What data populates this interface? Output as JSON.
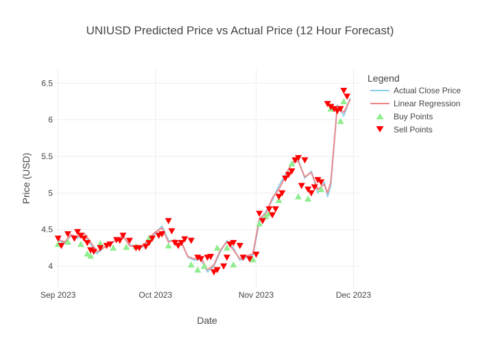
{
  "chart_data": {
    "type": "line",
    "title": "UNIUSD Predicted Price vs Actual Price (12 Hour Forecast)",
    "xlabel": "Date",
    "ylabel": "Price (USD)",
    "xlim": [
      "2023-08-31",
      "2023-12-03"
    ],
    "ylim": [
      3.7,
      6.7
    ],
    "x_ticks": [
      {
        "date": "2023-09-01",
        "label": "Sep 2023"
      },
      {
        "date": "2023-10-01",
        "label": "Oct 2023"
      },
      {
        "date": "2023-11-01",
        "label": "Nov 2023"
      },
      {
        "date": "2023-12-01",
        "label": "Dec 2023"
      }
    ],
    "y_ticks": [
      4,
      4.5,
      5,
      5.5,
      6,
      6.5
    ],
    "y_tick_labels": [
      "4",
      "4.5",
      "5",
      "5.5",
      "6",
      "6.5"
    ],
    "grid": true,
    "legend": {
      "title": "Legend",
      "placement": "top-right"
    },
    "series": [
      {
        "name": "Actual Close Price",
        "kind": "line",
        "color": "#87ceeb",
        "x": [
          "2023-09-01",
          "2023-09-03",
          "2023-09-05",
          "2023-09-07",
          "2023-09-09",
          "2023-09-11",
          "2023-09-13",
          "2023-09-15",
          "2023-09-17",
          "2023-09-19",
          "2023-09-21",
          "2023-09-23",
          "2023-09-25",
          "2023-09-27",
          "2023-09-29",
          "2023-10-01",
          "2023-10-03",
          "2023-10-05",
          "2023-10-07",
          "2023-10-09",
          "2023-10-11",
          "2023-10-13",
          "2023-10-15",
          "2023-10-17",
          "2023-10-19",
          "2023-10-21",
          "2023-10-23",
          "2023-10-25",
          "2023-10-27",
          "2023-10-29",
          "2023-10-31",
          "2023-11-02",
          "2023-11-04",
          "2023-11-06",
          "2023-11-08",
          "2023-11-10",
          "2023-11-12",
          "2023-11-14",
          "2023-11-16",
          "2023-11-18",
          "2023-11-20",
          "2023-11-22",
          "2023-11-23",
          "2023-11-24",
          "2023-11-26",
          "2023-11-28",
          "2023-11-30"
        ],
        "values": [
          4.35,
          4.32,
          4.42,
          4.38,
          4.45,
          4.3,
          4.17,
          4.25,
          4.32,
          4.35,
          4.4,
          4.3,
          4.25,
          4.26,
          4.35,
          4.45,
          4.55,
          4.35,
          4.35,
          4.33,
          4.12,
          4.08,
          4.1,
          3.92,
          4.0,
          4.2,
          4.35,
          4.25,
          4.08,
          4.12,
          4.15,
          4.6,
          4.75,
          4.9,
          5.1,
          5.25,
          5.4,
          5.45,
          5.2,
          5.3,
          5.0,
          5.15,
          4.95,
          5.1,
          6.2,
          6.05,
          6.3
        ]
      },
      {
        "name": "Linear Regression",
        "kind": "line",
        "color": "#f08080",
        "x": [
          "2023-09-01",
          "2023-09-03",
          "2023-09-05",
          "2023-09-07",
          "2023-09-09",
          "2023-09-11",
          "2023-09-13",
          "2023-09-15",
          "2023-09-17",
          "2023-09-19",
          "2023-09-21",
          "2023-09-23",
          "2023-09-25",
          "2023-09-27",
          "2023-09-29",
          "2023-10-01",
          "2023-10-03",
          "2023-10-05",
          "2023-10-07",
          "2023-10-09",
          "2023-10-11",
          "2023-10-13",
          "2023-10-15",
          "2023-10-17",
          "2023-10-19",
          "2023-10-21",
          "2023-10-23",
          "2023-10-25",
          "2023-10-27",
          "2023-10-29",
          "2023-10-31",
          "2023-11-02",
          "2023-11-04",
          "2023-11-06",
          "2023-11-08",
          "2023-11-10",
          "2023-11-12",
          "2023-11-14",
          "2023-11-16",
          "2023-11-18",
          "2023-11-20",
          "2023-11-22",
          "2023-11-23",
          "2023-11-24",
          "2023-11-26",
          "2023-11-28",
          "2023-11-30"
        ],
        "values": [
          4.37,
          4.33,
          4.43,
          4.4,
          4.45,
          4.33,
          4.2,
          4.25,
          4.3,
          4.36,
          4.42,
          4.28,
          4.26,
          4.27,
          4.38,
          4.47,
          4.52,
          4.33,
          4.36,
          4.32,
          4.13,
          4.1,
          4.12,
          3.95,
          4.02,
          4.22,
          4.33,
          4.22,
          4.1,
          4.14,
          4.17,
          4.65,
          4.72,
          4.93,
          5.05,
          5.22,
          5.42,
          5.43,
          5.22,
          5.28,
          5.05,
          5.12,
          5.0,
          5.15,
          6.18,
          6.1,
          6.28
        ]
      },
      {
        "name": "Buy Points",
        "kind": "markers",
        "marker": "triangle-up",
        "color": "#90ee90",
        "x": [
          "2023-09-01",
          "2023-09-04",
          "2023-09-08",
          "2023-09-10",
          "2023-09-11",
          "2023-09-14",
          "2023-09-18",
          "2023-09-22",
          "2023-09-25",
          "2023-09-29",
          "2023-10-05",
          "2023-10-12",
          "2023-10-14",
          "2023-10-16",
          "2023-10-20",
          "2023-10-23",
          "2023-10-25",
          "2023-10-31",
          "2023-11-02",
          "2023-11-04",
          "2023-11-05",
          "2023-11-08",
          "2023-11-12",
          "2023-11-14",
          "2023-11-17",
          "2023-11-21",
          "2023-11-24",
          "2023-11-27",
          "2023-11-28"
        ],
        "values": [
          4.3,
          4.33,
          4.3,
          4.17,
          4.14,
          4.31,
          4.25,
          4.26,
          4.27,
          4.38,
          4.28,
          4.02,
          3.95,
          4.0,
          4.25,
          4.25,
          4.02,
          4.09,
          4.58,
          4.68,
          4.72,
          4.9,
          5.4,
          4.95,
          4.92,
          5.05,
          6.15,
          5.98,
          6.25
        ]
      },
      {
        "name": "Sell Points",
        "kind": "markers",
        "marker": "triangle-down",
        "color": "#ff0000",
        "x": [
          "2023-09-01",
          "2023-09-02",
          "2023-09-04",
          "2023-09-06",
          "2023-09-07",
          "2023-09-08",
          "2023-09-09",
          "2023-09-10",
          "2023-09-11",
          "2023-09-12",
          "2023-09-14",
          "2023-09-16",
          "2023-09-17",
          "2023-09-19",
          "2023-09-20",
          "2023-09-21",
          "2023-09-23",
          "2023-09-25",
          "2023-09-26",
          "2023-09-28",
          "2023-09-29",
          "2023-09-30",
          "2023-10-02",
          "2023-10-03",
          "2023-10-05",
          "2023-10-06",
          "2023-10-07",
          "2023-10-08",
          "2023-10-09",
          "2023-10-10",
          "2023-10-12",
          "2023-10-14",
          "2023-10-15",
          "2023-10-17",
          "2023-10-18",
          "2023-10-19",
          "2023-10-20",
          "2023-10-22",
          "2023-10-23",
          "2023-10-24",
          "2023-10-25",
          "2023-10-27",
          "2023-10-28",
          "2023-10-30",
          "2023-11-01",
          "2023-11-02",
          "2023-11-03",
          "2023-11-05",
          "2023-11-06",
          "2023-11-07",
          "2023-11-08",
          "2023-11-09",
          "2023-11-10",
          "2023-11-11",
          "2023-11-12",
          "2023-11-13",
          "2023-11-14",
          "2023-11-15",
          "2023-11-16",
          "2023-11-17",
          "2023-11-18",
          "2023-11-19",
          "2023-11-20",
          "2023-11-21",
          "2023-11-23",
          "2023-11-24",
          "2023-11-25",
          "2023-11-26",
          "2023-11-27",
          "2023-11-28",
          "2023-11-29"
        ],
        "values": [
          4.38,
          4.28,
          4.44,
          4.38,
          4.47,
          4.42,
          4.38,
          4.32,
          4.22,
          4.2,
          4.25,
          4.28,
          4.3,
          4.36,
          4.35,
          4.42,
          4.35,
          4.25,
          4.25,
          4.27,
          4.32,
          4.38,
          4.42,
          4.44,
          4.62,
          4.48,
          4.32,
          4.28,
          4.32,
          4.37,
          4.35,
          4.12,
          4.1,
          4.12,
          4.13,
          3.92,
          3.95,
          4.0,
          4.12,
          4.3,
          4.32,
          4.28,
          4.12,
          4.1,
          4.16,
          4.72,
          4.62,
          4.78,
          4.7,
          4.78,
          4.95,
          5.0,
          5.2,
          5.25,
          5.3,
          5.45,
          5.48,
          5.1,
          5.45,
          5.05,
          5.0,
          5.08,
          5.18,
          5.15,
          6.22,
          6.18,
          6.15,
          6.12,
          6.15,
          6.4,
          6.32
        ]
      }
    ]
  }
}
